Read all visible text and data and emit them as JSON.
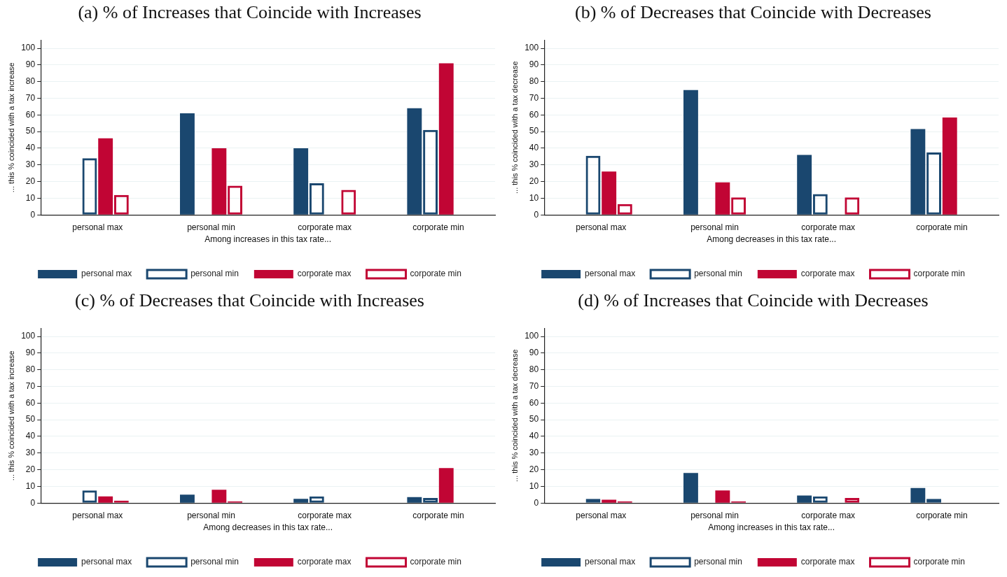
{
  "chart_data": [
    {
      "type": "bar",
      "title": "(a) % of Increases that Coincide with Increases",
      "xlabel": "Among increases in this tax rate...",
      "ylabel": "... this % coincided with a tax increase",
      "categories": [
        "personal max",
        "personal min",
        "corporate max",
        "corporate min"
      ],
      "ylim": [
        0,
        105
      ],
      "yticks": [
        0,
        10,
        20,
        30,
        40,
        50,
        60,
        70,
        80,
        90,
        100
      ],
      "grid": "y",
      "legend": "bottom",
      "series": [
        {
          "name": "personal max",
          "color": "#1a476f",
          "values": [
            null,
            61,
            40,
            64
          ]
        },
        {
          "name": "personal min",
          "color": "#1a476f",
          "values": [
            34,
            null,
            19,
            51
          ]
        },
        {
          "name": "corporate max",
          "color": "#c10534",
          "values": [
            46,
            40,
            null,
            91
          ]
        },
        {
          "name": "corporate min",
          "color": "#c10534",
          "values": [
            12,
            17.5,
            15,
            null
          ]
        }
      ]
    },
    {
      "type": "bar",
      "title": "(b) % of Decreases that Coincide with Decreases",
      "xlabel": "Among decreases in this tax rate...",
      "ylabel": "... this % coincided with a tax decrease",
      "categories": [
        "personal max",
        "personal min",
        "corporate max",
        "corporate min"
      ],
      "ylim": [
        0,
        105
      ],
      "yticks": [
        0,
        10,
        20,
        30,
        40,
        50,
        60,
        70,
        80,
        90,
        100
      ],
      "grid": "y",
      "legend": "bottom",
      "series": [
        {
          "name": "personal max",
          "color": "#1a476f",
          "values": [
            null,
            75,
            36,
            51.5
          ]
        },
        {
          "name": "personal min",
          "color": "#1a476f",
          "values": [
            35.5,
            null,
            12.5,
            37.5
          ]
        },
        {
          "name": "corporate max",
          "color": "#c10534",
          "values": [
            26,
            19.5,
            null,
            58.5
          ]
        },
        {
          "name": "corporate min",
          "color": "#c10534",
          "values": [
            6.5,
            10.5,
            10.5,
            null
          ]
        }
      ]
    },
    {
      "type": "bar",
      "title": "(c) % of Decreases that Coincide with Increases",
      "xlabel": "Among decreases in this tax rate...",
      "ylabel": "... this % coincided with a tax increase",
      "categories": [
        "personal max",
        "personal min",
        "corporate max",
        "corporate min"
      ],
      "ylim": [
        0,
        105
      ],
      "yticks": [
        0,
        10,
        20,
        30,
        40,
        50,
        60,
        70,
        80,
        90,
        100
      ],
      "grid": "y",
      "legend": "bottom",
      "series": [
        {
          "name": "personal max",
          "color": "#1a476f",
          "values": [
            null,
            5,
            2.5,
            3.5
          ]
        },
        {
          "name": "personal min",
          "color": "#1a476f",
          "values": [
            7.5,
            null,
            4,
            3
          ]
        },
        {
          "name": "corporate max",
          "color": "#c10534",
          "values": [
            4,
            8,
            null,
            21
          ]
        },
        {
          "name": "corporate min",
          "color": "#c10534",
          "values": [
            1.5,
            1,
            null,
            null
          ]
        }
      ]
    },
    {
      "type": "bar",
      "title": "(d) % of Increases that Coincide with Decreases",
      "xlabel": "Among increases in this tax rate...",
      "ylabel": "... this % coincided with a tax decrease",
      "categories": [
        "personal max",
        "personal min",
        "corporate max",
        "corporate min"
      ],
      "ylim": [
        0,
        105
      ],
      "yticks": [
        0,
        10,
        20,
        30,
        40,
        50,
        60,
        70,
        80,
        90,
        100
      ],
      "grid": "y",
      "legend": "bottom",
      "series": [
        {
          "name": "personal max",
          "color": "#1a476f",
          "values": [
            null,
            18,
            4.5,
            9
          ]
        },
        {
          "name": "personal min",
          "color": "#1a476f",
          "values": [
            2.5,
            null,
            4,
            2.5
          ]
        },
        {
          "name": "corporate max",
          "color": "#c10534",
          "values": [
            2,
            7.5,
            null,
            null
          ]
        },
        {
          "name": "corporate min",
          "color": "#c10534",
          "values": [
            1,
            1,
            3,
            null
          ]
        }
      ]
    }
  ]
}
